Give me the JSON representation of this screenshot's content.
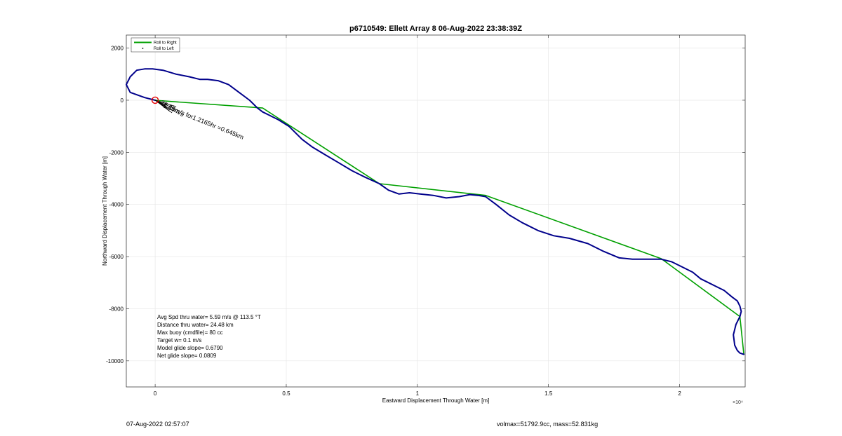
{
  "chart_data": {
    "type": "line",
    "title": "p6710549: Ellett Array 8 06-Aug-2022 23:38:39Z",
    "xlabel": "Eastward Displacement Through Water [m]",
    "ylabel": "Northward Displacement Through Water [m]",
    "x_exponent_label": "×10⁴",
    "xlim": [
      -1100,
      22500
    ],
    "ylim": [
      -11000,
      2500
    ],
    "x_scale": 10000,
    "xticks": [
      0,
      5000,
      10000,
      15000,
      20000
    ],
    "xtick_labels": [
      "0",
      "0.5",
      "1",
      "1.5",
      "2"
    ],
    "yticks": [
      2000,
      0,
      -2000,
      -4000,
      -6000,
      -8000,
      -10000
    ],
    "ytick_labels": [
      "2000",
      "0",
      "-2000",
      "-4000",
      "-6000",
      "-8000",
      "-10000"
    ],
    "grid": true,
    "legend_position": "top-left",
    "legend": [
      {
        "label": "Roll to Right",
        "color": "#00a000",
        "style": "line"
      },
      {
        "label": "Roll to Left",
        "color": "#000000",
        "style": "marker"
      }
    ],
    "series": [
      {
        "name": "Roll to Right",
        "color": "#00a000",
        "x": [
          0,
          620,
          4100,
          8550,
          12600,
          19300,
          22300,
          22450
        ],
        "y": [
          0,
          -50,
          -300,
          -3200,
          -3650,
          -6080,
          -8300,
          -9750
        ]
      },
      {
        "name": "track",
        "color": "#00008b",
        "x": [
          0,
          -400,
          -950,
          -1100,
          -950,
          -700,
          -400,
          -100,
          300,
          800,
          1300,
          1700,
          2000,
          2400,
          2800,
          3200,
          3600,
          3900,
          4100,
          4300,
          4700,
          5100,
          5600,
          6000,
          6500,
          7000,
          7500,
          8000,
          8550,
          8900,
          9300,
          9700,
          10100,
          10600,
          11100,
          11600,
          12000,
          12300,
          12600,
          13000,
          13500,
          14000,
          14600,
          15200,
          15800,
          16500,
          17100,
          17700,
          18200,
          18800,
          19300,
          19700,
          20100,
          20500,
          20800,
          21300,
          21700,
          22000,
          22200,
          22300,
          22350,
          22300,
          22150,
          22050,
          22100,
          22200,
          22300,
          22450
        ],
        "y": [
          0,
          100,
          300,
          600,
          900,
          1150,
          1200,
          1200,
          1150,
          1000,
          900,
          800,
          800,
          750,
          600,
          300,
          0,
          -300,
          -450,
          -550,
          -750,
          -1000,
          -1500,
          -1800,
          -2100,
          -2400,
          -2700,
          -2950,
          -3200,
          -3450,
          -3600,
          -3550,
          -3600,
          -3650,
          -3750,
          -3700,
          -3620,
          -3650,
          -3700,
          -4000,
          -4400,
          -4700,
          -5000,
          -5200,
          -5300,
          -5500,
          -5800,
          -6050,
          -6100,
          -6100,
          -6100,
          -6200,
          -6400,
          -6600,
          -6850,
          -7100,
          -7300,
          -7550,
          -7700,
          -7900,
          -8100,
          -8300,
          -8600,
          -9000,
          -9400,
          -9600,
          -9700,
          -9750
        ]
      }
    ],
    "annotations": {
      "arrow_label": "5.59m/s for1.2165hr =0.645km",
      "overlap_text": "22.35m/s",
      "start_marker": {
        "x": 0,
        "y": 0,
        "color": "#e60000"
      },
      "stats": [
        "Avg Spd thru water=  5.59 m/s @ 113.5 °T",
        "Distance thru water= 24.48 km",
        "Max buoy (cmdfile)= 80 cc",
        "Target w= 0.1 m/s",
        "Model glide slope= 0.6790",
        "Net glide slope= 0.0809"
      ]
    }
  },
  "footer": {
    "timestamp": "07-Aug-2022 02:57:07",
    "volume_mass": "volmax=51792.9cc, mass=52.831kg"
  }
}
